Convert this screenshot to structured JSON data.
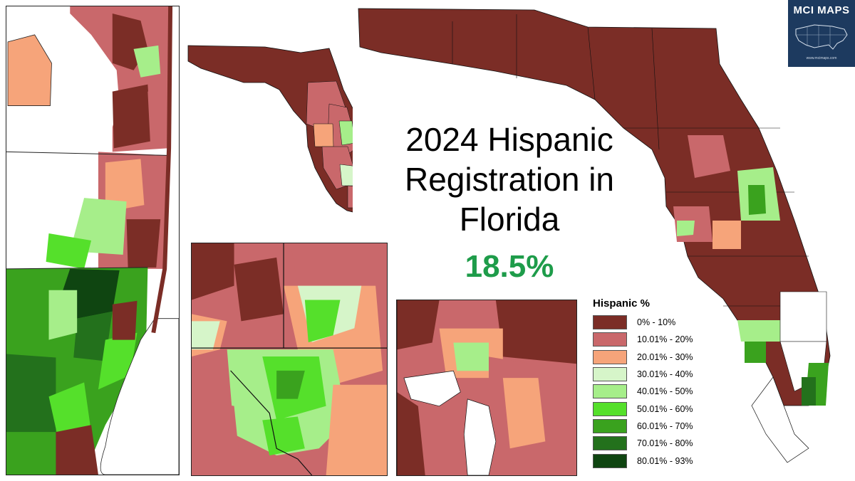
{
  "title": "2024 Hispanic Registration in Florida",
  "statewide_share": "18.5%",
  "logo": {
    "text": "MCI MAPS",
    "subtext": "www.mcimaps.com"
  },
  "legend": {
    "title": "Hispanic  %",
    "classes": [
      {
        "label": "0% - 10%",
        "color": "#7b2d26"
      },
      {
        "label": "10.01% - 20%",
        "color": "#c9686b"
      },
      {
        "label": "20.01% - 30%",
        "color": "#f6a47a"
      },
      {
        "label": "30.01% - 40%",
        "color": "#d6f5c9"
      },
      {
        "label": "40.01% - 50%",
        "color": "#a6ee8a"
      },
      {
        "label": "50.01% - 60%",
        "color": "#55e02b"
      },
      {
        "label": "60.01% - 70%",
        "color": "#3aa21e"
      },
      {
        "label": "70.01% - 80%",
        "color": "#23711c"
      },
      {
        "label": "80.01% - 93%",
        "color": "#0f4511"
      }
    ]
  },
  "colors": {
    "water": "#ffffff",
    "outline": "#1a1a1a",
    "statewide_text": "#1e9c4a"
  }
}
